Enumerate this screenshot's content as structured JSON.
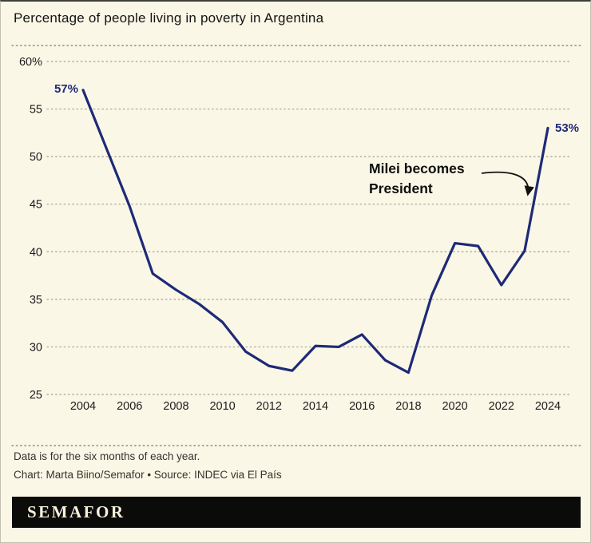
{
  "title": "Percentage of people living in poverty in Argentina",
  "chart_data": {
    "type": "line",
    "x": [
      2004,
      2005,
      2006,
      2007,
      2008,
      2009,
      2010,
      2011,
      2012,
      2013,
      2014,
      2015,
      2016,
      2017,
      2018,
      2019,
      2020,
      2021,
      2022,
      2023,
      2024
    ],
    "values": [
      57,
      50.9,
      44.8,
      37.7,
      36.0,
      34.5,
      32.6,
      29.5,
      28.0,
      27.5,
      30.1,
      30.0,
      31.3,
      28.6,
      27.3,
      35.4,
      40.9,
      40.6,
      36.5,
      40.1,
      53.0
    ],
    "x_tick_labels": [
      "2004",
      "2006",
      "2008",
      "2010",
      "2012",
      "2014",
      "2016",
      "2018",
      "2020",
      "2022",
      "2024"
    ],
    "y_ticks": [
      60,
      55,
      50,
      45,
      40,
      35,
      30,
      25
    ],
    "y_tick_labels": [
      "60%",
      "55",
      "50",
      "45",
      "40",
      "35",
      "30",
      "25"
    ],
    "ylim": [
      25,
      60
    ],
    "grid": "dotted horizontal",
    "legend": "none",
    "line_color": "#1e2a78",
    "start_label": "57%",
    "end_label": "53%",
    "annotation": {
      "line1": "Milei becomes",
      "line2": "President"
    }
  },
  "footer": {
    "note": "Data is for the six months of each year.",
    "credit": "Chart: Marta Biino/Semafor • Source: INDEC via El País"
  },
  "logo": "SEMAFOR"
}
